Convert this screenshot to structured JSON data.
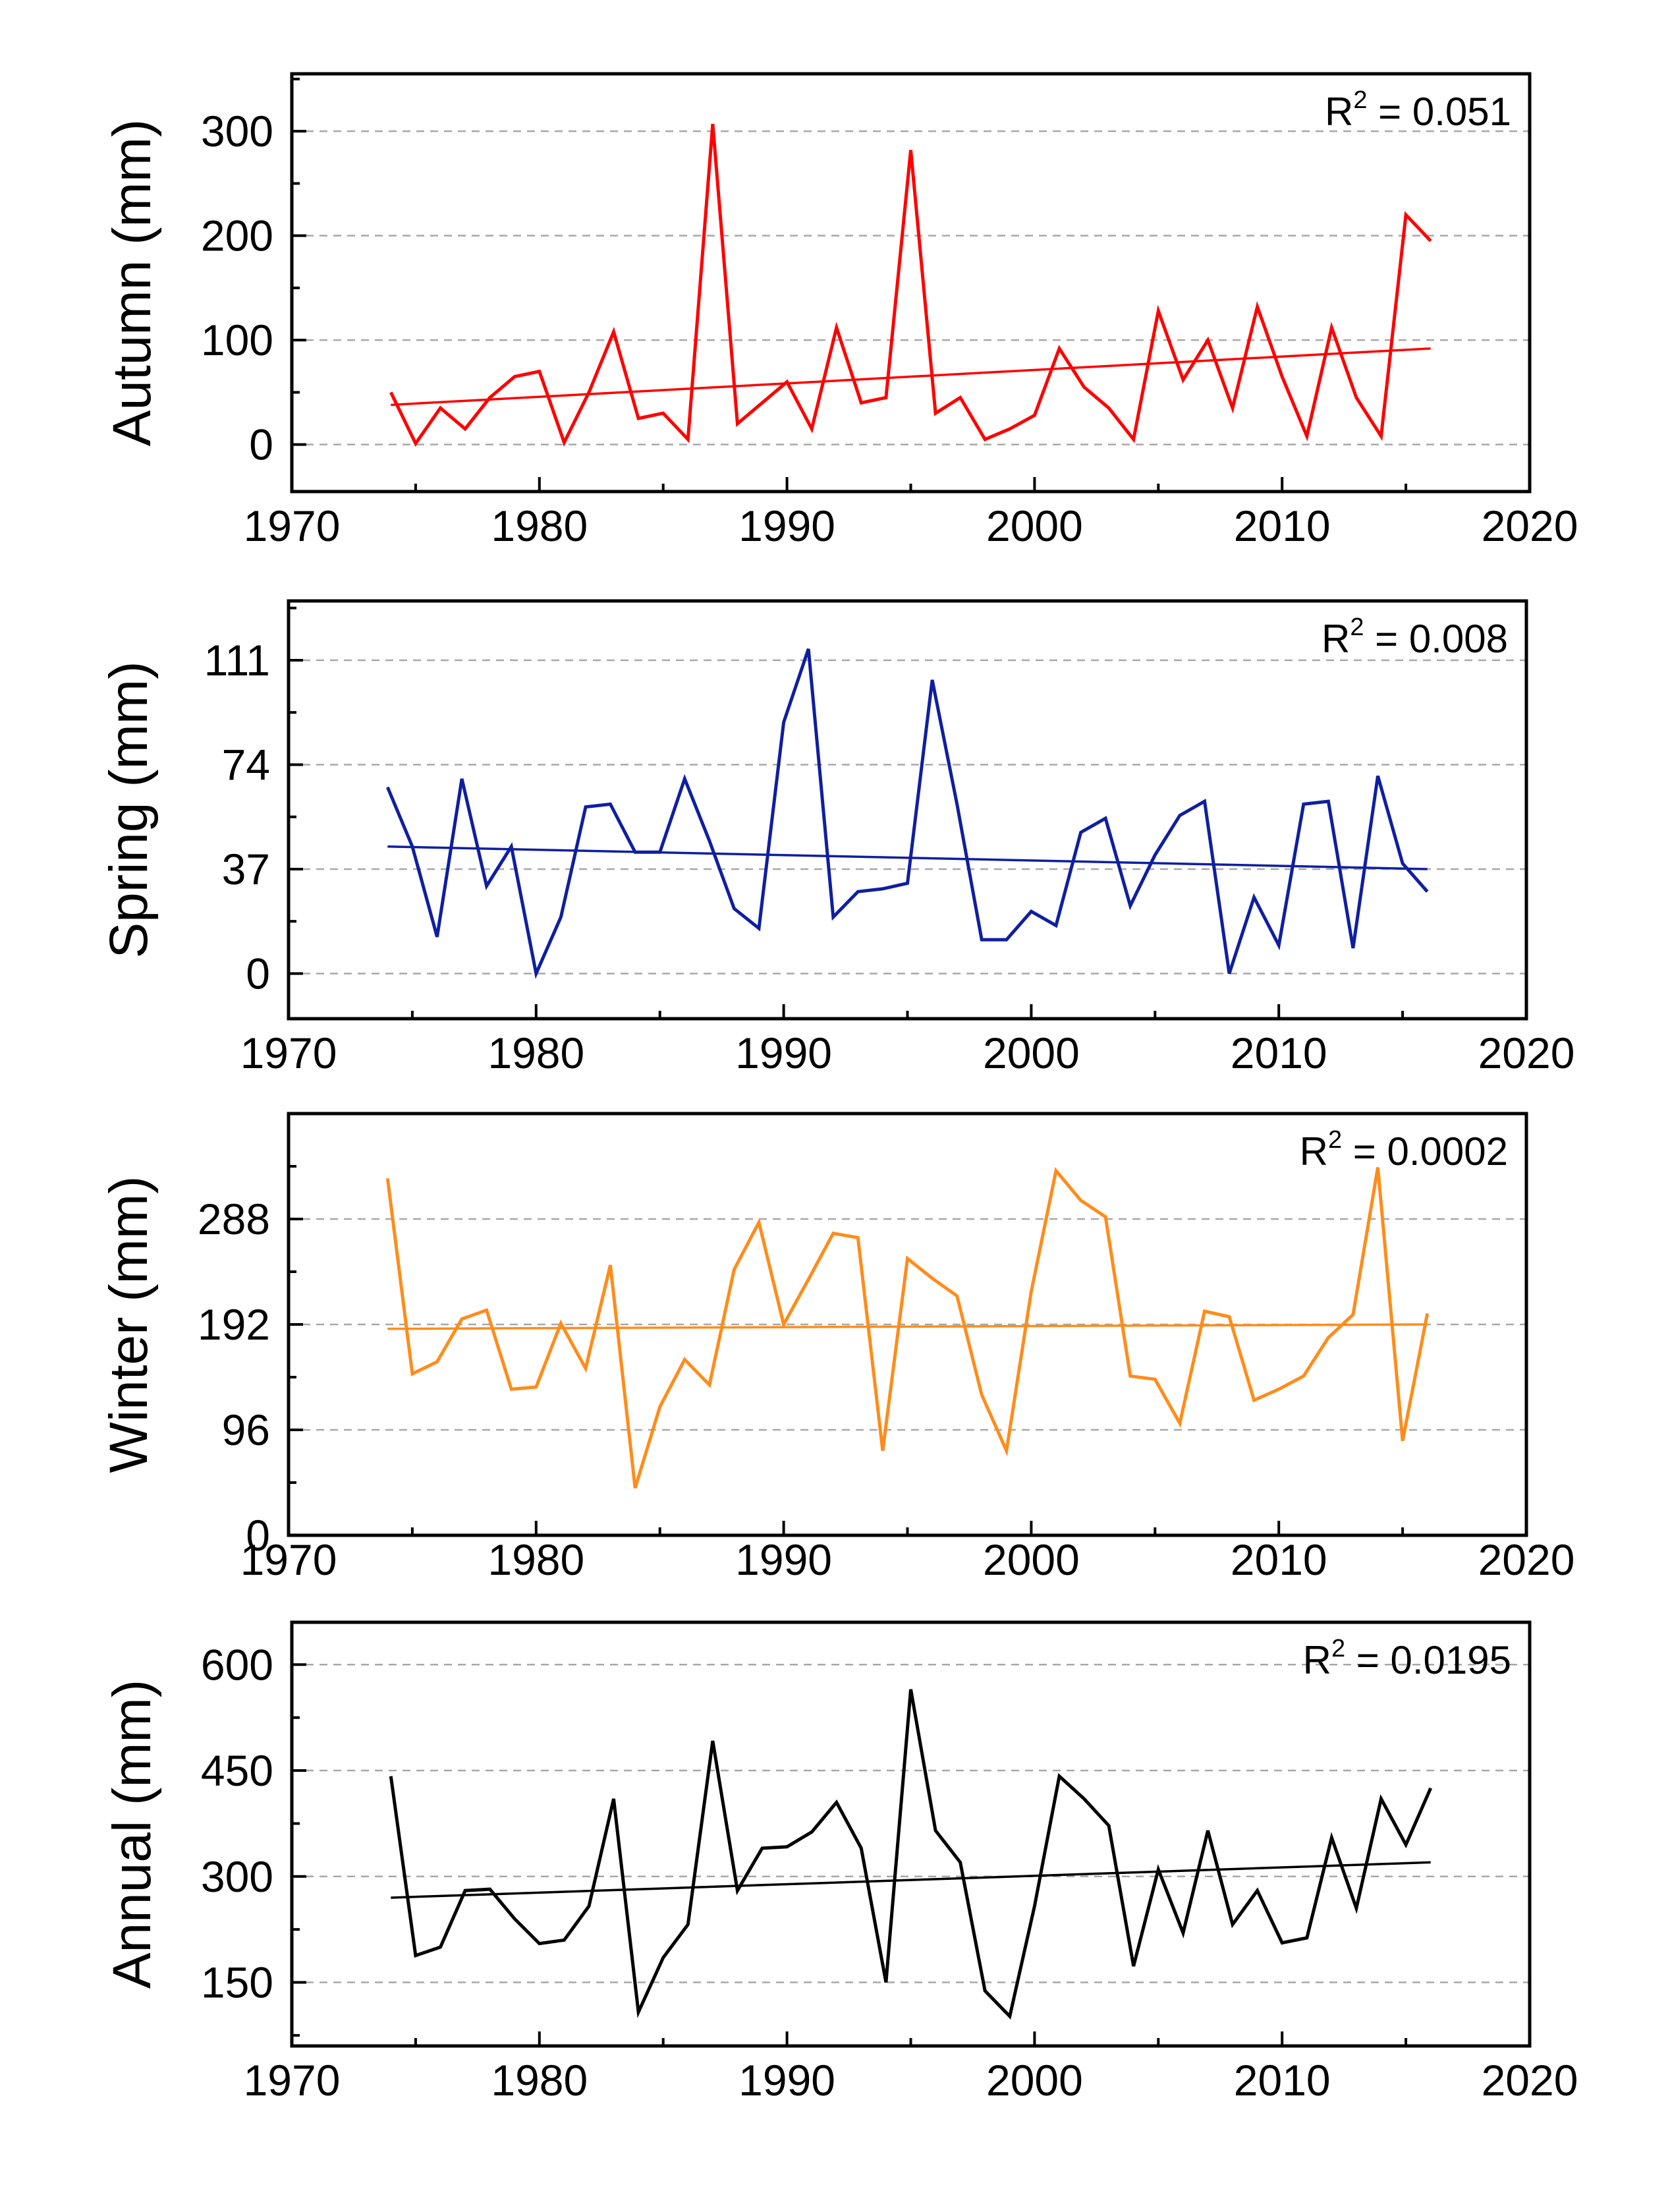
{
  "chart_data": [
    {
      "type": "line",
      "ylabel": "Autumn (mm)",
      "xlim": [
        1970,
        2020
      ],
      "xticks": [
        1970,
        1980,
        1990,
        2000,
        2010,
        2020
      ],
      "ylim": [
        -45,
        355
      ],
      "yticks": [
        0,
        100,
        200,
        300
      ],
      "grid": true,
      "annotation": {
        "prefix": "R",
        "sup": "2",
        "suffix": " = 0.051"
      },
      "color": "#ff0000",
      "x": [
        1974,
        1975,
        1976,
        1977,
        1978,
        1979,
        1980,
        1981,
        1982,
        1983,
        1984,
        1985,
        1986,
        1987,
        1988,
        1989,
        1990,
        1991,
        1992,
        1993,
        1994,
        1995,
        1996,
        1997,
        1998,
        1999,
        2000,
        2001,
        2002,
        2003,
        2004,
        2005,
        2006,
        2007,
        2008,
        2009,
        2010,
        2011,
        2012,
        2013,
        2014,
        2015,
        2016
      ],
      "y": [
        50,
        1,
        35,
        15,
        45,
        65,
        70,
        2,
        50,
        108,
        25,
        30,
        5,
        307,
        20,
        40,
        60,
        15,
        112,
        40,
        45,
        282,
        30,
        45,
        5,
        15,
        28,
        92,
        55,
        35,
        5,
        128,
        62,
        100,
        35,
        132,
        65,
        8,
        112,
        45,
        8,
        220,
        195
      ],
      "trend": {
        "x": [
          1974,
          2016
        ],
        "y": [
          38,
          92
        ]
      }
    },
    {
      "type": "line",
      "ylabel": "Spring (mm)",
      "xlim": [
        1970,
        2020
      ],
      "xticks": [
        1970,
        1980,
        1990,
        2000,
        2010,
        2020
      ],
      "ylim": [
        -16,
        132
      ],
      "yticks": [
        0,
        37,
        74,
        111
      ],
      "grid": true,
      "annotation": {
        "prefix": "R",
        "sup": "2",
        "suffix": " = 0.008"
      },
      "color": "#0f1fa0",
      "x": [
        1974,
        1975,
        1976,
        1977,
        1978,
        1979,
        1980,
        1981,
        1982,
        1983,
        1984,
        1985,
        1986,
        1987,
        1988,
        1989,
        1990,
        1991,
        1992,
        1993,
        1994,
        1995,
        1996,
        1997,
        1998,
        1999,
        2000,
        2001,
        2002,
        2003,
        2004,
        2005,
        2006,
        2007,
        2008,
        2009,
        2010,
        2011,
        2012,
        2013,
        2014,
        2015,
        2016
      ],
      "y": [
        66,
        45,
        13,
        69,
        31,
        45,
        0,
        20,
        59,
        60,
        43,
        43,
        69,
        47,
        23,
        16,
        89,
        115,
        20,
        29,
        30,
        32,
        104,
        60,
        12,
        12,
        22,
        17,
        50,
        55,
        24,
        42,
        56,
        61,
        0,
        27,
        10,
        60,
        61,
        9,
        70,
        39,
        29
      ],
      "trend": {
        "x": [
          1974,
          2016
        ],
        "y": [
          45,
          37
        ]
      }
    },
    {
      "type": "line",
      "ylabel": "Winter (mm)",
      "xlim": [
        1970,
        2020
      ],
      "xticks": [
        1970,
        1980,
        1990,
        2000,
        2010,
        2020
      ],
      "ylim": [
        0,
        384
      ],
      "yticks": [
        0,
        96,
        192,
        288
      ],
      "grid": true,
      "annotation": {
        "prefix": "R",
        "sup": "2",
        "suffix": " = 0.0002"
      },
      "color": "#ff8c1a",
      "x": [
        1974,
        1975,
        1976,
        1977,
        1978,
        1979,
        1980,
        1981,
        1982,
        1983,
        1984,
        1985,
        1986,
        1987,
        1988,
        1989,
        1990,
        1991,
        1992,
        1993,
        1994,
        1995,
        1996,
        1997,
        1998,
        1999,
        2000,
        2001,
        2002,
        2003,
        2004,
        2005,
        2006,
        2007,
        2008,
        2009,
        2010,
        2011,
        2012,
        2013,
        2014,
        2015,
        2016
      ],
      "y": [
        325,
        147,
        158,
        197,
        205,
        133,
        135,
        193,
        152,
        246,
        43,
        117,
        160,
        137,
        242,
        285,
        192,
        233,
        275,
        271,
        77,
        252,
        234,
        218,
        128,
        77,
        222,
        332,
        305,
        290,
        145,
        142,
        102,
        204,
        199,
        123,
        133,
        145,
        180,
        201,
        335,
        86,
        202
      ],
      "trend": {
        "x": [
          1974,
          2016
        ],
        "y": [
          188,
          192
        ]
      }
    },
    {
      "type": "line",
      "ylabel": "Annual (mm)",
      "xlim": [
        1970,
        2020
      ],
      "xticks": [
        1970,
        1980,
        1990,
        2000,
        2010,
        2020
      ],
      "ylim": [
        60,
        660
      ],
      "yticks": [
        150,
        300,
        450,
        600
      ],
      "grid": true,
      "annotation": {
        "prefix": "R",
        "sup": "2",
        "suffix": " = 0.0195"
      },
      "color": "#000000",
      "x": [
        1974,
        1975,
        1976,
        1977,
        1978,
        1979,
        1980,
        1981,
        1982,
        1983,
        1984,
        1985,
        1986,
        1987,
        1988,
        1989,
        1990,
        1991,
        1992,
        1993,
        1994,
        1995,
        1996,
        1997,
        1998,
        1999,
        2000,
        2001,
        2002,
        2003,
        2004,
        2005,
        2006,
        2007,
        2008,
        2009,
        2010,
        2011,
        2012,
        2013,
        2014,
        2015,
        2016
      ],
      "y": [
        442,
        188,
        200,
        280,
        282,
        240,
        205,
        210,
        258,
        410,
        108,
        185,
        232,
        492,
        280,
        340,
        342,
        363,
        405,
        340,
        150,
        565,
        365,
        320,
        138,
        102,
        258,
        442,
        410,
        372,
        173,
        310,
        220,
        365,
        232,
        280,
        206,
        213,
        355,
        255,
        410,
        345,
        425
      ],
      "trend": {
        "x": [
          1974,
          2016
        ],
        "y": [
          270,
          320
        ]
      }
    }
  ]
}
